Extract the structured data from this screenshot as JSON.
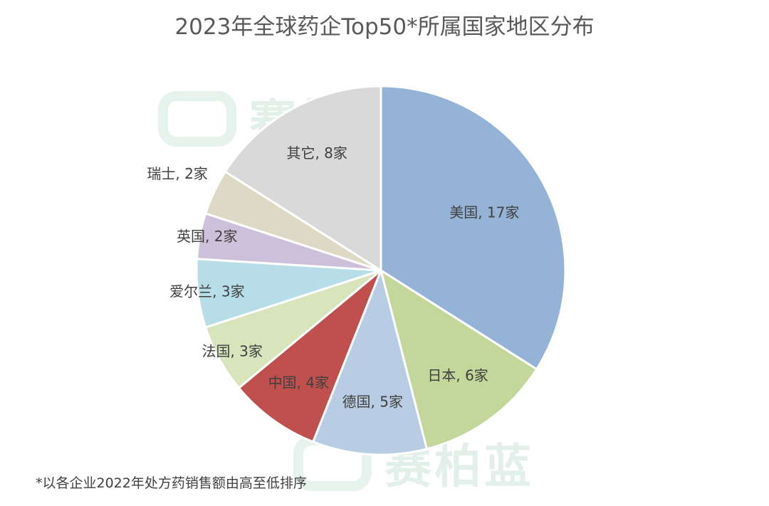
{
  "chart_data": {
    "type": "pie",
    "title": "2023年全球药企Top50*所属国家地区分布",
    "slices": [
      {
        "label": "美国, 17家",
        "name": "美国",
        "value": 17,
        "color": "#95b3d7"
      },
      {
        "label": "日本, 6家",
        "name": "日本",
        "value": 6,
        "color": "#c4d79b"
      },
      {
        "label": "德国, 5家",
        "name": "德国",
        "value": 5,
        "color": "#b8cce4"
      },
      {
        "label": "中国, 4家",
        "name": "中国",
        "value": 4,
        "color": "#c0504d"
      },
      {
        "label": "法国, 3家",
        "name": "法国",
        "value": 3,
        "color": "#d8e4bc"
      },
      {
        "label": "爱尔兰, 3家",
        "name": "爱尔兰",
        "value": 3,
        "color": "#b7dee8"
      },
      {
        "label": "英国, 2家",
        "name": "英国",
        "value": 2,
        "color": "#ccc0da"
      },
      {
        "label": "瑞士, 2家",
        "name": "瑞士",
        "value": 2,
        "color": "#ddd9c4"
      },
      {
        "label": "其它, 8家",
        "name": "其它",
        "value": 8,
        "color": "#d9d9d9"
      }
    ]
  },
  "footnote": "*以各企业2022年处方药销售额由高至低排序",
  "watermark": "赛柏蓝"
}
